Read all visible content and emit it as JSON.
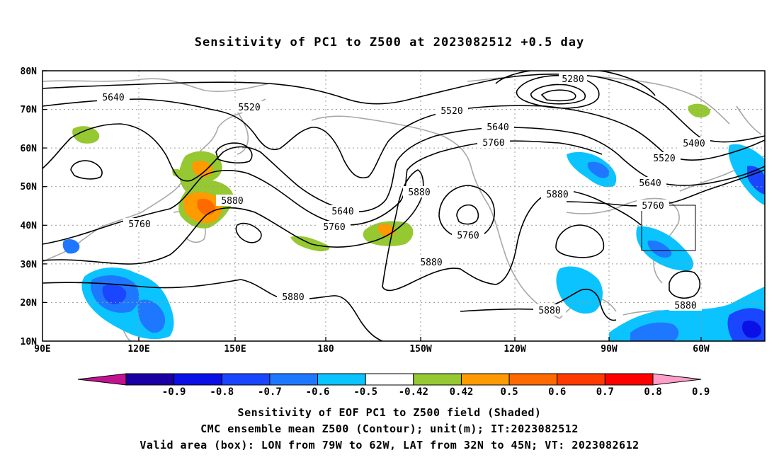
{
  "title": "Sensitivity of PC1 to Z500 at 2023082512 +0.5 day",
  "lat_labels": [
    "80N",
    "70N",
    "60N",
    "50N",
    "40N",
    "30N",
    "20N",
    "10N"
  ],
  "lon_labels": [
    "90E",
    "120E",
    "150E",
    "180",
    "150W",
    "120W",
    "90W",
    "60W"
  ],
  "contour_labels": {
    "c5280": "5280",
    "c5400": "5400",
    "c5520": "5520",
    "c5640": "5640",
    "c5760": "5760",
    "c5880": "5880"
  },
  "colorbar": {
    "labels": [
      "-0.9",
      "-0.8",
      "-0.7",
      "-0.6",
      "-0.5",
      "-0.42",
      "0.42",
      "0.5",
      "0.6",
      "0.7",
      "0.8",
      "0.9"
    ],
    "colors": [
      "#c3128f",
      "#1a00a3",
      "#0a10e6",
      "#1a46ff",
      "#1e78ff",
      "#0ac3ff",
      "#ffffff",
      "#96c832",
      "#ff9a00",
      "#ff6a00",
      "#ff3a00",
      "#ff0000",
      "#ff9ec8"
    ]
  },
  "valid_box": {
    "lon_from": "79W",
    "lon_to": "62W",
    "lat_from": "32N",
    "lat_to": "45N"
  },
  "captions": {
    "line1": "Sensitivity of EOF PC1 to Z500 field (Shaded)",
    "line2": "CMC ensemble mean Z500 (Contour); unit(m); IT:2023082512",
    "line3": "Valid area (box): LON from 79W to 62W, LAT from 32N to 45N; VT: 2023082612"
  }
}
